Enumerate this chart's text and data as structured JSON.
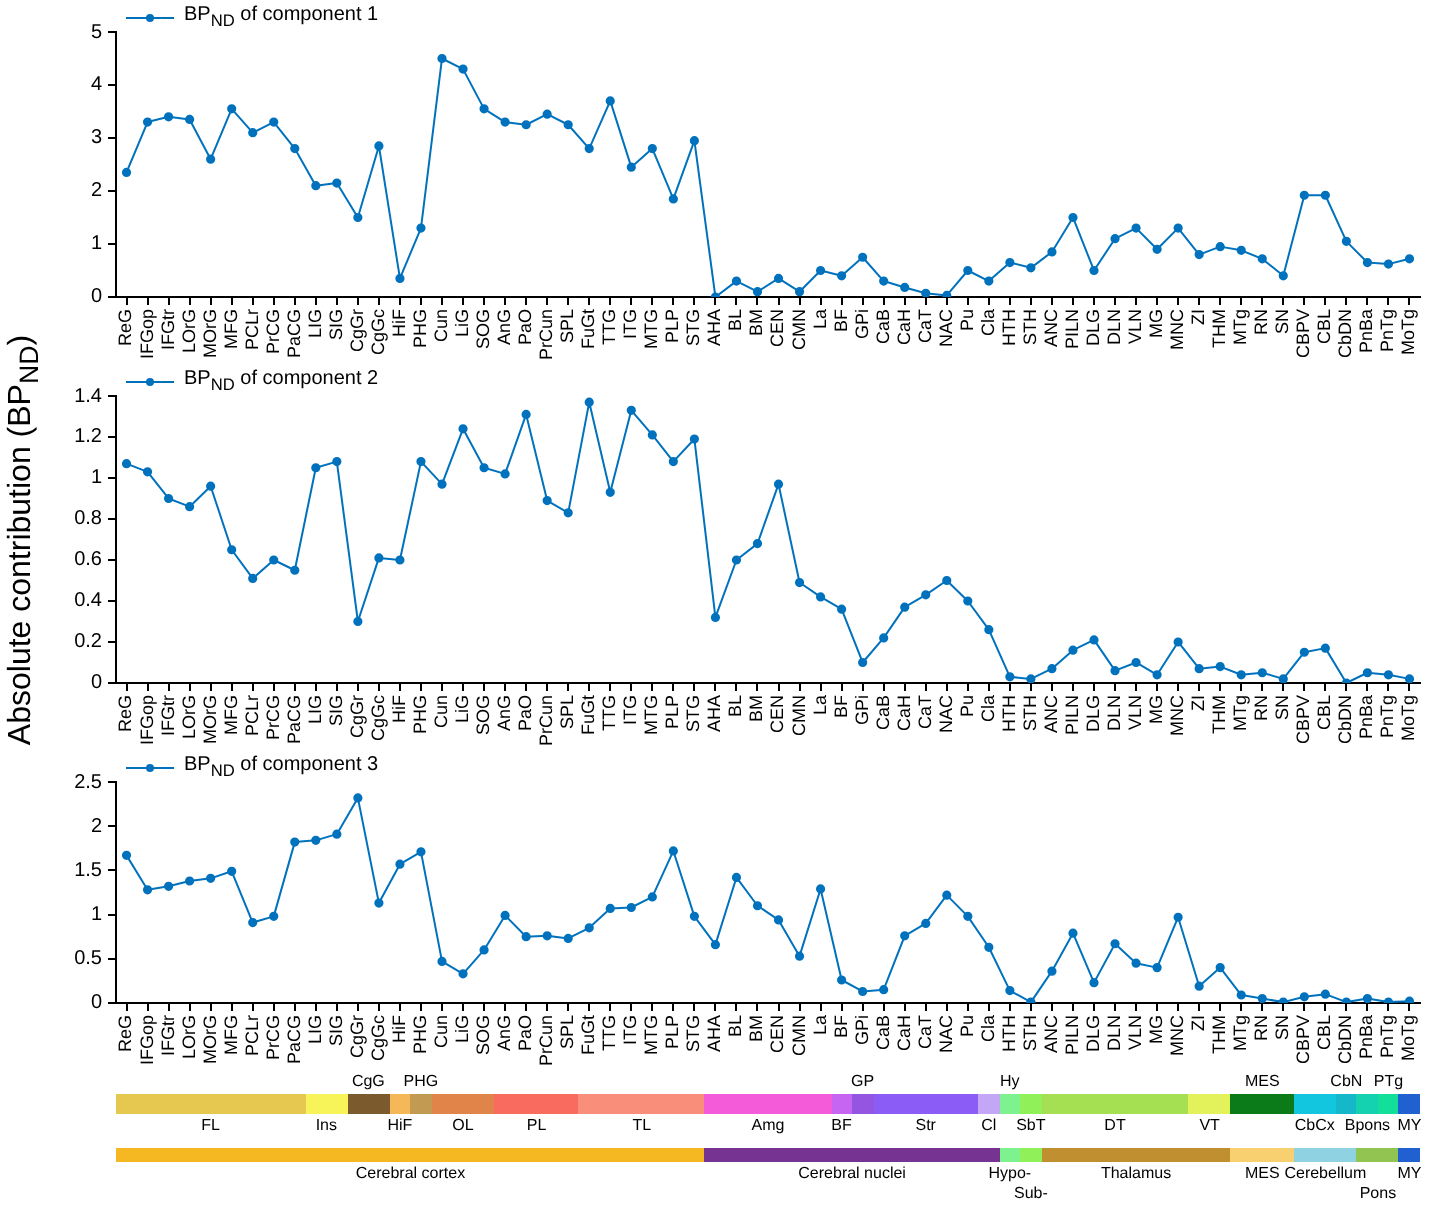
{
  "chart_data": [
    {
      "type": "line",
      "categories": [
        "ReG",
        "IFGop",
        "IFGtr",
        "LOrG",
        "MOrG",
        "MFG",
        "PCLr",
        "PrCG",
        "PaCG",
        "LIG",
        "SIG",
        "CgGr",
        "CgGc",
        "HiF",
        "PHG",
        "Cun",
        "LiG",
        "SOG",
        "AnG",
        "PaO",
        "PrCun",
        "SPL",
        "FuGt",
        "TTG",
        "ITG",
        "MTG",
        "PLP",
        "STG",
        "AHA",
        "BL",
        "BM",
        "CEN",
        "CMN",
        "La",
        "BF",
        "GPi",
        "CaB",
        "CaH",
        "CaT",
        "NAC",
        "Pu",
        "Cla",
        "HTH",
        "STH",
        "ANC",
        "PILN",
        "DLG",
        "DLN",
        "VLN",
        "MG",
        "MNC",
        "ZI",
        "THM",
        "MTg",
        "RN",
        "SN",
        "CBPV",
        "CBL",
        "CbDN",
        "PnBa",
        "PnTg",
        "MoTg"
      ],
      "series": [
        {
          "name": "BP$_{ND}$ of component 1",
          "color": "#0072bd",
          "values": [
            2.35,
            3.3,
            3.4,
            3.35,
            2.6,
            3.55,
            3.1,
            3.3,
            2.8,
            2.1,
            2.15,
            1.5,
            2.85,
            0.35,
            1.3,
            4.5,
            4.3,
            3.55,
            3.3,
            3.25,
            3.45,
            3.25,
            2.8,
            3.7,
            2.45,
            2.8,
            1.85,
            2.95,
            0.0,
            0.3,
            0.1,
            0.35,
            0.1,
            0.5,
            0.4,
            0.75,
            0.3,
            0.18,
            0.07,
            0.03,
            0.5,
            0.3,
            0.65,
            0.55,
            0.85,
            1.5,
            0.5,
            1.1,
            1.3,
            0.9,
            1.3,
            0.8,
            0.95,
            0.88,
            0.72,
            0.4,
            1.92,
            1.92,
            1.05,
            0.65,
            0.62,
            0.72
          ]
        }
      ],
      "ylim": [
        0,
        5
      ],
      "yticks": [
        0,
        1,
        2,
        3,
        4,
        5
      ],
      "grid": false,
      "legend": "top left",
      "marker": "circle",
      "line_style": "solid"
    },
    {
      "type": "line",
      "ylabel": "Absolute contribution (BP$_{ND}$)",
      "categories": [
        "ReG",
        "IFGop",
        "IFGtr",
        "LOrG",
        "MOrG",
        "MFG",
        "PCLr",
        "PrCG",
        "PaCG",
        "LIG",
        "SIG",
        "CgGr",
        "CgGc",
        "HiF",
        "PHG",
        "Cun",
        "LiG",
        "SOG",
        "AnG",
        "PaO",
        "PrCun",
        "SPL",
        "FuGt",
        "TTG",
        "ITG",
        "MTG",
        "PLP",
        "STG",
        "AHA",
        "BL",
        "BM",
        "CEN",
        "CMN",
        "La",
        "BF",
        "GPi",
        "CaB",
        "CaH",
        "CaT",
        "NAC",
        "Pu",
        "Cla",
        "HTH",
        "STH",
        "ANC",
        "PILN",
        "DLG",
        "DLN",
        "VLN",
        "MG",
        "MNC",
        "ZI",
        "THM",
        "MTg",
        "RN",
        "SN",
        "CBPV",
        "CBL",
        "CbDN",
        "PnBa",
        "PnTg",
        "MoTg"
      ],
      "series": [
        {
          "name": "BP$_{ND}$ of component 2",
          "color": "#0072bd",
          "values": [
            1.07,
            1.03,
            0.9,
            0.86,
            0.96,
            0.65,
            0.51,
            0.6,
            0.55,
            1.05,
            1.08,
            0.3,
            0.61,
            0.6,
            1.08,
            0.97,
            1.24,
            1.05,
            1.02,
            1.31,
            0.89,
            0.83,
            1.37,
            0.93,
            1.33,
            1.21,
            1.08,
            1.19,
            0.32,
            0.6,
            0.68,
            0.97,
            0.49,
            0.42,
            0.36,
            0.1,
            0.22,
            0.37,
            0.43,
            0.5,
            0.4,
            0.26,
            0.03,
            0.02,
            0.07,
            0.16,
            0.21,
            0.06,
            0.1,
            0.04,
            0.2,
            0.07,
            0.08,
            0.04,
            0.05,
            0.02,
            0.15,
            0.17,
            0.0,
            0.05,
            0.04,
            0.02
          ]
        }
      ],
      "ylim": [
        0,
        1.4
      ],
      "yticks": [
        0,
        0.2,
        0.4,
        0.6,
        0.8,
        1,
        1.2,
        1.4
      ],
      "grid": false,
      "legend": "top left",
      "marker": "circle",
      "line_style": "solid"
    },
    {
      "type": "line",
      "categories": [
        "ReG",
        "IFGop",
        "IFGtr",
        "LOrG",
        "MOrG",
        "MFG",
        "PCLr",
        "PrCG",
        "PaCG",
        "LIG",
        "SIG",
        "CgGr",
        "CgGc",
        "HiF",
        "PHG",
        "Cun",
        "LiG",
        "SOG",
        "AnG",
        "PaO",
        "PrCun",
        "SPL",
        "FuGt",
        "TTG",
        "ITG",
        "MTG",
        "PLP",
        "STG",
        "AHA",
        "BL",
        "BM",
        "CEN",
        "CMN",
        "La",
        "BF",
        "GPi",
        "CaB",
        "CaH",
        "CaT",
        "NAC",
        "Pu",
        "Cla",
        "HTH",
        "STH",
        "ANC",
        "PILN",
        "DLG",
        "DLN",
        "VLN",
        "MG",
        "MNC",
        "ZI",
        "THM",
        "MTg",
        "RN",
        "SN",
        "CBPV",
        "CBL",
        "CbDN",
        "PnBa",
        "PnTg",
        "MoTg"
      ],
      "series": [
        {
          "name": "BP$_{ND}$ of component 3",
          "color": "#0072bd",
          "values": [
            1.67,
            1.28,
            1.32,
            1.38,
            1.41,
            1.49,
            0.91,
            0.98,
            1.82,
            1.84,
            1.91,
            2.32,
            1.13,
            1.57,
            1.71,
            0.47,
            0.33,
            0.6,
            0.99,
            0.75,
            0.76,
            0.73,
            0.85,
            1.07,
            1.08,
            1.2,
            1.72,
            0.98,
            0.66,
            1.42,
            1.1,
            0.94,
            0.53,
            1.29,
            0.26,
            0.13,
            0.15,
            0.76,
            0.9,
            1.22,
            0.98,
            0.63,
            0.14,
            0.01,
            0.36,
            0.79,
            0.23,
            0.67,
            0.45,
            0.4,
            0.97,
            0.19,
            0.4,
            0.09,
            0.05,
            0.01,
            0.07,
            0.1,
            0.01,
            0.05,
            0.01,
            0.02
          ]
        }
      ],
      "ylim": [
        0,
        2.5
      ],
      "yticks": [
        0,
        0.5,
        1,
        1.5,
        2,
        2.5
      ],
      "grid": false,
      "legend": "top left",
      "marker": "circle",
      "line_style": "solid"
    },
    {
      "type": "other",
      "annotations": [
        "FL",
        "Ins",
        "CgG",
        "HiF",
        "PHG",
        "OL",
        "PL",
        "TL",
        "Amg",
        "BF",
        "GP",
        "Str",
        "Cl",
        "Hy",
        "SbT",
        "DT",
        "VT",
        "MES",
        "CbCx",
        "CbN",
        "Bpons",
        "PTg",
        "MY",
        "Cerebral cortex",
        "Cerebral nuclei",
        "Hypo-",
        "Sub-",
        "Thalamus",
        "MES",
        "Cerebellum",
        "Pons",
        "MY"
      ]
    }
  ]
}
